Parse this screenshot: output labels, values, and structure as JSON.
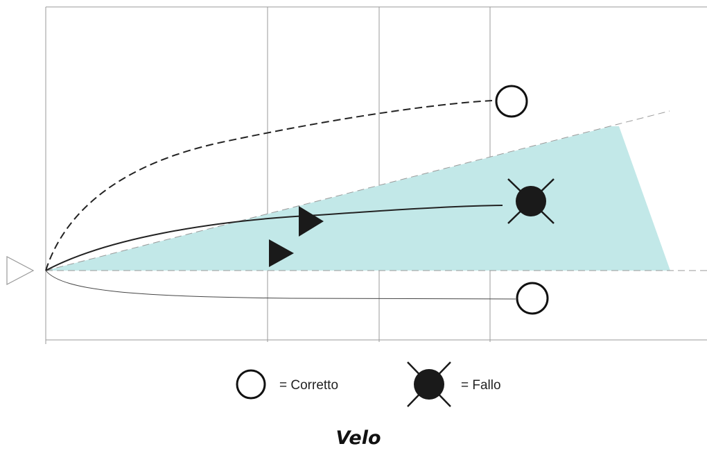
{
  "diagram": {
    "title": "Velo",
    "legend": {
      "correct_label": "= Corretto",
      "foul_label": "= Fallo"
    },
    "icons": {
      "correct": "circle-outline-icon",
      "foul": "crossed-filled-circle-icon",
      "player": "triangle-icon",
      "origin": "triangle-outline-icon"
    },
    "colors": {
      "shaded_zone": "#c2e8e8",
      "grid": "#9a9a9a",
      "path": "#222222",
      "marker": "#1a1a1a"
    }
  }
}
